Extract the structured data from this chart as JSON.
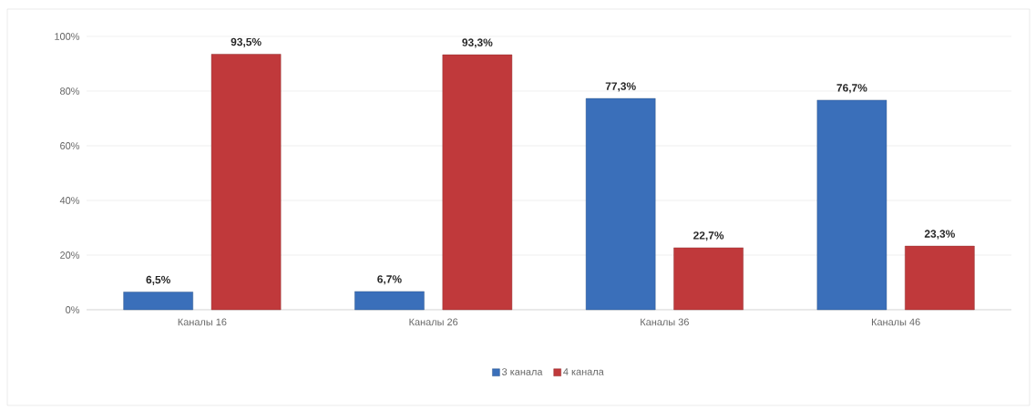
{
  "chart_data": {
    "type": "bar",
    "categories": [
      "Каналы 16",
      "Каналы 26",
      "Каналы 36",
      "Каналы 46"
    ],
    "series": [
      {
        "name": "3 канала",
        "color": "#3a6fba",
        "values": [
          6.5,
          6.7,
          77.3,
          76.7
        ],
        "value_labels": [
          "6,5%",
          "6,7%",
          "77,3%",
          "76,7%"
        ]
      },
      {
        "name": "4 канала",
        "color": "#c0393b",
        "values": [
          93.5,
          93.3,
          22.7,
          23.3
        ],
        "value_labels": [
          "93,5%",
          "93,3%",
          "22,7%",
          "23,3%"
        ]
      }
    ],
    "ylim": [
      0,
      100
    ],
    "yticks": [
      {
        "value": 0,
        "label": "0%"
      },
      {
        "value": 20,
        "label": "20%"
      },
      {
        "value": 40,
        "label": "40%"
      },
      {
        "value": 60,
        "label": "60%"
      },
      {
        "value": 80,
        "label": "80%"
      },
      {
        "value": 100,
        "label": "100%"
      }
    ],
    "grid": "y",
    "legend": "bottom"
  }
}
